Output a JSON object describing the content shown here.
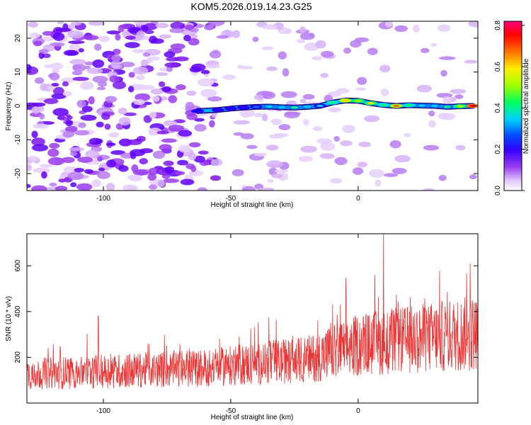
{
  "figure": {
    "title": "KOM5.2026.019.14.23.G25"
  },
  "chart_data": [
    {
      "type": "heatmap",
      "name": "spectrogram",
      "xlabel": "Height of straight line (km)",
      "ylabel": "Frequency (Hz)",
      "xlim": [
        -130,
        47
      ],
      "ylim": [
        -25,
        25
      ],
      "x_ticks": [
        -100,
        -50,
        0
      ],
      "y_ticks": [
        -20,
        -10,
        0,
        10,
        20
      ],
      "colorbar": {
        "label": "Normalized spectral amplitude",
        "range": [
          0,
          0.82
        ],
        "ticks": [
          0,
          0.2,
          0.4,
          0.6,
          0.8
        ],
        "colors": [
          "#ffffff",
          "#d8b4f8",
          "#9a3cf0",
          "#6600ff",
          "#0000ff",
          "#00c0ff",
          "#00ff80",
          "#80ff00",
          "#ffff00",
          "#ff8000",
          "#ff0000",
          "#ff0080"
        ]
      },
      "ridge": {
        "description_units": "x in km, y in Hz, amplitude normalized",
        "x": [
          -63,
          -55,
          -50,
          -45,
          -40,
          -35,
          -30,
          -25,
          -20,
          -15,
          -10,
          -5,
          0,
          5,
          10,
          15,
          20,
          25,
          30,
          35,
          40,
          45
        ],
        "y": [
          -1.5,
          -1.2,
          -0.8,
          -0.5,
          -0.3,
          -0.2,
          -0.4,
          -0.5,
          -0.3,
          0,
          1,
          1.6,
          1.5,
          0.8,
          0.3,
          0,
          0.2,
          0.1,
          0,
          -0.3,
          -0.1,
          0
        ],
        "amplitude": [
          0.3,
          0.32,
          0.34,
          0.36,
          0.4,
          0.48,
          0.5,
          0.52,
          0.5,
          0.45,
          0.55,
          0.68,
          0.62,
          0.66,
          0.55,
          0.7,
          0.55,
          0.5,
          0.48,
          0.52,
          0.62,
          0.82
        ]
      }
    },
    {
      "type": "line",
      "name": "snr",
      "xlabel": "Height of straight line (km)",
      "ylabel": "SNR (10 * v/v)",
      "xlim": [
        -130,
        47
      ],
      "ylim": [
        0,
        740
      ],
      "x_ticks": [
        -100,
        -50,
        0
      ],
      "y_ticks": [
        200,
        400,
        600
      ],
      "color": "#ee3333",
      "baseline_trend": {
        "x": [
          -130,
          -60,
          -20,
          0,
          47
        ],
        "y": [
          120,
          145,
          180,
          240,
          290
        ]
      },
      "notable_peaks": [
        {
          "x": -102,
          "y": 380
        },
        {
          "x": -35,
          "y": 375
        },
        {
          "x": -7,
          "y": 430
        },
        {
          "x": 10,
          "y": 740
        },
        {
          "x": 44,
          "y": 610
        }
      ]
    }
  ]
}
